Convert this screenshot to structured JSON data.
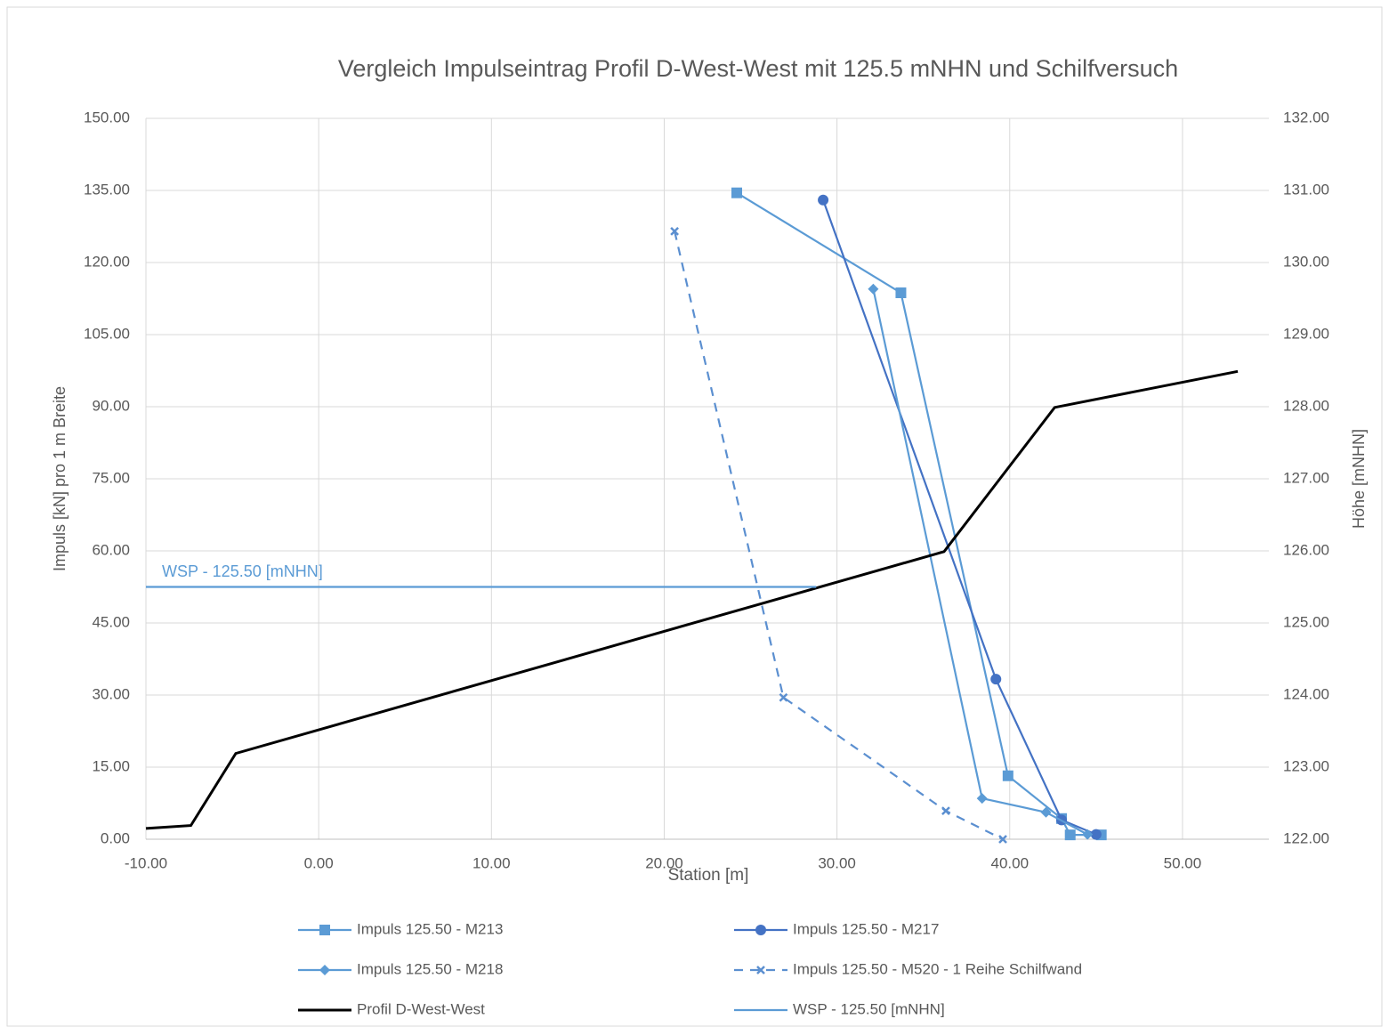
{
  "chart_data": {
    "type": "line",
    "title": "Vergleich Impulseintrag  Profil D-West-West mit 125.5 mNHN und Schilfversuch",
    "x_label": "Station [m]",
    "y_label": "Impuls [kN] pro 1 m Breite",
    "y2_label": "Höhe [mNHN]",
    "annotation": "WSP - 125.50 [mNHN]",
    "xlim": [
      -10,
      55
    ],
    "xticks": [
      {
        "value": -10,
        "label": "-10.00"
      },
      {
        "value": 0,
        "label": "0.00"
      },
      {
        "value": 10,
        "label": "10.00"
      },
      {
        "value": 20,
        "label": "20.00"
      },
      {
        "value": 30,
        "label": "30.00"
      },
      {
        "value": 40,
        "label": "40.00"
      },
      {
        "value": 50,
        "label": "50.00"
      }
    ],
    "ylim": [
      0,
      150
    ],
    "yticks": [
      {
        "value": 0,
        "label": "0.00"
      },
      {
        "value": 15,
        "label": "15.00"
      },
      {
        "value": 30,
        "label": "30.00"
      },
      {
        "value": 45,
        "label": "45.00"
      },
      {
        "value": 60,
        "label": "60.00"
      },
      {
        "value": 75,
        "label": "75.00"
      },
      {
        "value": 90,
        "label": "90.00"
      },
      {
        "value": 105,
        "label": "105.00"
      },
      {
        "value": 120,
        "label": "120.00"
      },
      {
        "value": 135,
        "label": "135.00"
      },
      {
        "value": 150,
        "label": "150.00"
      }
    ],
    "y2lim": [
      122,
      132
    ],
    "y2ticks": [
      {
        "value": 122,
        "label": "122.00"
      },
      {
        "value": 123,
        "label": "123.00"
      },
      {
        "value": 124,
        "label": "124.00"
      },
      {
        "value": 125,
        "label": "125.00"
      },
      {
        "value": 126,
        "label": "126.00"
      },
      {
        "value": 127,
        "label": "127.00"
      },
      {
        "value": 128,
        "label": "128.00"
      },
      {
        "value": 129,
        "label": "129.00"
      },
      {
        "value": 130,
        "label": "130.00"
      },
      {
        "value": 131,
        "label": "131.00"
      },
      {
        "value": 132,
        "label": "132.00"
      }
    ],
    "grid": true,
    "legend": "bottom",
    "series": [
      {
        "name": "Impuls 125.50 - M213",
        "color": "#5b9bd5",
        "marker": "square",
        "x": [
          24.2,
          33.7,
          39.9,
          43.0,
          43.5,
          45.3
        ],
        "values": [
          134.5,
          113.7,
          13.2,
          4.3,
          0.9,
          0.9
        ]
      },
      {
        "name": "Impuls 125.50 - M217",
        "color": "#4472c4",
        "marker": "circle",
        "x": [
          29.2,
          39.2,
          43.0,
          45.0
        ],
        "values": [
          133.0,
          33.3,
          4.0,
          1.0
        ]
      },
      {
        "name": "Impuls 125.50 - M218",
        "color": "#5b9bd5",
        "marker": "diamond",
        "x": [
          32.1,
          38.4,
          42.1,
          44.5
        ],
        "values": [
          114.5,
          8.5,
          5.6,
          1.0
        ]
      },
      {
        "name": "Impuls 125.50 - M520 - 1 Reihe Schilfwand",
        "color": "#5b8fd0",
        "marker": "x",
        "dash": true,
        "x": [
          20.6,
          26.9,
          36.3,
          39.6
        ],
        "values": [
          126.5,
          29.5,
          5.9,
          0
        ]
      },
      {
        "name": "Profil D-West-West",
        "color": "#000000",
        "marker": "none",
        "width": 3,
        "axis": "y2",
        "x": [
          -10,
          -7.4,
          -4.8,
          36.2,
          42.6,
          53.2
        ],
        "values": [
          122.15,
          122.19,
          123.19,
          125.99,
          127.99,
          128.49
        ]
      },
      {
        "name": "WSP - 125.50 [mNHN]",
        "color": "#5b9bd5",
        "marker": "none",
        "axis": "y2",
        "x": [
          -10,
          28.8
        ],
        "values": [
          125.5,
          125.5
        ]
      }
    ]
  }
}
